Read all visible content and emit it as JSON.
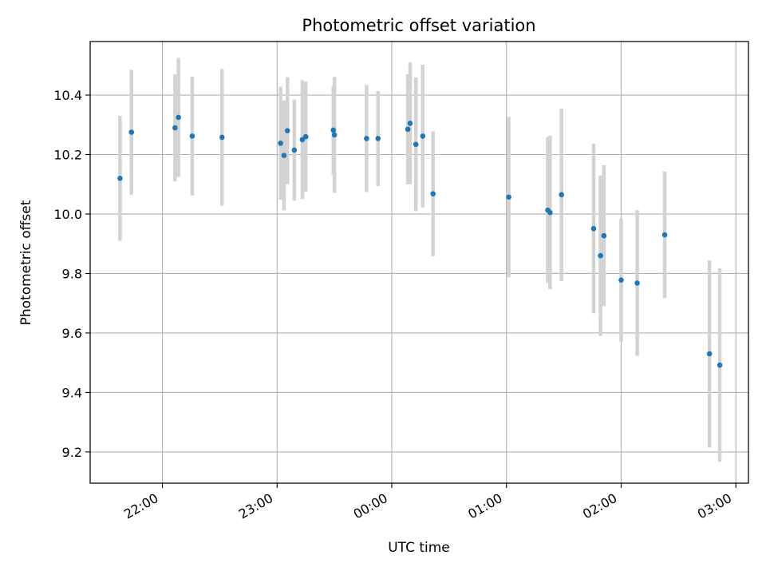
{
  "chart_data": {
    "type": "scatter",
    "title": "Photometric offset variation",
    "xlabel": "UTC time",
    "ylabel": "Photometric offset",
    "x_tick_labels": [
      "22:00",
      "23:00",
      "00:00",
      "01:00",
      "02:00",
      "03:00"
    ],
    "x_tick_values_hours": [
      22,
      23,
      24,
      25,
      26,
      27
    ],
    "y_ticks": [
      9.2,
      9.4,
      9.6,
      9.8,
      10.0,
      10.2,
      10.4
    ],
    "xlim_hours": [
      21.37,
      27.11
    ],
    "ylim": [
      9.095,
      10.58
    ],
    "grid": true,
    "point_color": "#1f77b4",
    "errorbar_color": "#d3d3d3",
    "points": [
      {
        "t": 21.63,
        "y": 10.12,
        "err": 0.21
      },
      {
        "t": 21.73,
        "y": 10.275,
        "err": 0.21
      },
      {
        "t": 22.11,
        "y": 10.29,
        "err": 0.18
      },
      {
        "t": 22.14,
        "y": 10.325,
        "err": 0.2
      },
      {
        "t": 22.26,
        "y": 10.262,
        "err": 0.2
      },
      {
        "t": 22.52,
        "y": 10.258,
        "err": 0.23
      },
      {
        "t": 23.03,
        "y": 10.238,
        "err": 0.19
      },
      {
        "t": 23.06,
        "y": 10.197,
        "err": 0.185
      },
      {
        "t": 23.09,
        "y": 10.28,
        "err": 0.18
      },
      {
        "t": 23.15,
        "y": 10.215,
        "err": 0.17
      },
      {
        "t": 23.22,
        "y": 10.25,
        "err": 0.2
      },
      {
        "t": 23.25,
        "y": 10.26,
        "err": 0.185
      },
      {
        "t": 23.49,
        "y": 10.282,
        "err": 0.15
      },
      {
        "t": 23.5,
        "y": 10.266,
        "err": 0.195
      },
      {
        "t": 23.78,
        "y": 10.254,
        "err": 0.18
      },
      {
        "t": 23.88,
        "y": 10.254,
        "err": 0.16
      },
      {
        "t": 24.14,
        "y": 10.285,
        "err": 0.185
      },
      {
        "t": 24.16,
        "y": 10.305,
        "err": 0.205
      },
      {
        "t": 24.21,
        "y": 10.234,
        "err": 0.225
      },
      {
        "t": 24.27,
        "y": 10.262,
        "err": 0.24
      },
      {
        "t": 24.36,
        "y": 10.068,
        "err": 0.21
      },
      {
        "t": 25.02,
        "y": 10.057,
        "err": 0.27
      },
      {
        "t": 25.36,
        "y": 10.013,
        "err": 0.245
      },
      {
        "t": 25.38,
        "y": 10.005,
        "err": 0.258
      },
      {
        "t": 25.48,
        "y": 10.065,
        "err": 0.29
      },
      {
        "t": 25.76,
        "y": 9.951,
        "err": 0.285
      },
      {
        "t": 25.82,
        "y": 9.86,
        "err": 0.27
      },
      {
        "t": 25.85,
        "y": 9.927,
        "err": 0.237
      },
      {
        "t": 26.0,
        "y": 9.778,
        "err": 0.208
      },
      {
        "t": 26.14,
        "y": 9.768,
        "err": 0.245
      },
      {
        "t": 26.38,
        "y": 9.93,
        "err": 0.213
      },
      {
        "t": 26.77,
        "y": 9.53,
        "err": 0.315
      },
      {
        "t": 26.86,
        "y": 9.492,
        "err": 0.325
      }
    ]
  }
}
